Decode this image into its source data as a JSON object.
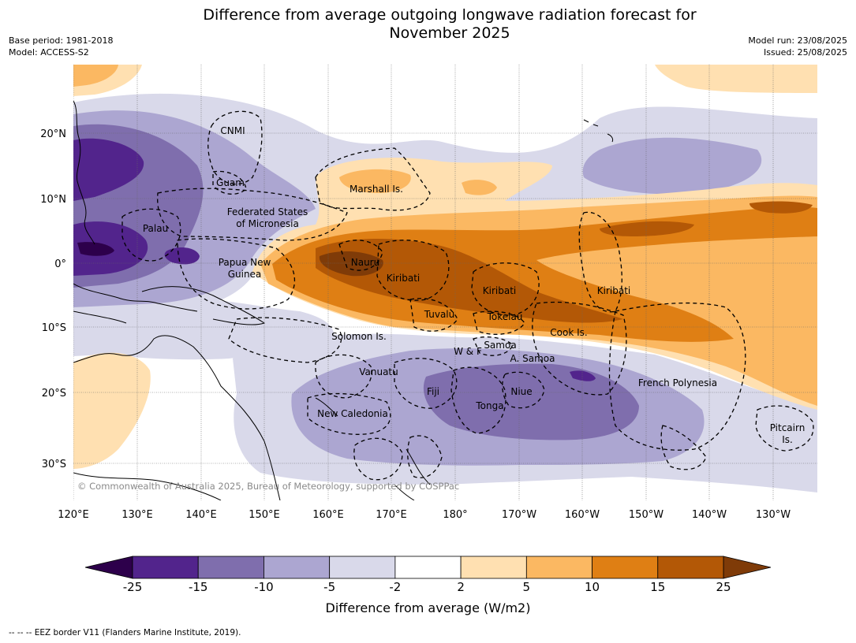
{
  "title": "Difference from average outgoing longwave radiation forecast for November 2025",
  "title_line1": "Difference from average outgoing longwave radiation forecast for",
  "title_line2": "November 2025",
  "meta_left": [
    "Base period: 1981-2018",
    "Model: ACCESS-S2"
  ],
  "meta_right": [
    "Model run: 23/08/2025",
    "Issued: 25/08/2025"
  ],
  "copyright": "© Commonwealth of Australia 2025, Bureau of Meteorology, supported by COSPPac",
  "lon_labels": [
    "120°E",
    "130°E",
    "140°E",
    "150°E",
    "160°E",
    "170°E",
    "180°",
    "170°W",
    "160°W",
    "150°W",
    "140°W",
    "130°W"
  ],
  "lat_labels": [
    "20°N",
    "10°N",
    "0°",
    "10°S",
    "20°S",
    "30°S"
  ],
  "places": [
    {
      "name": "CNMI"
    },
    {
      "name": "Guam"
    },
    {
      "name": "Marshall Is."
    },
    {
      "name": "Federated States"
    },
    {
      "name": "of Micronesia"
    },
    {
      "name": "Palau"
    },
    {
      "name": "Nauru"
    },
    {
      "name": "Papua New"
    },
    {
      "name": "Guinea"
    },
    {
      "name": "Kiribati"
    },
    {
      "name": "Kiribati"
    },
    {
      "name": "Kiribati"
    },
    {
      "name": "Tuvalu"
    },
    {
      "name": "Tokelau"
    },
    {
      "name": "Cook Is."
    },
    {
      "name": "Solomon Is."
    },
    {
      "name": "W & F"
    },
    {
      "name": "Samoa"
    },
    {
      "name": "A. Samoa"
    },
    {
      "name": "Vanuatu"
    },
    {
      "name": "Fiji"
    },
    {
      "name": "Niue"
    },
    {
      "name": "Tonga"
    },
    {
      "name": "French Polynesia"
    },
    {
      "name": "New Caledonia"
    },
    {
      "name": "Pitcairn"
    },
    {
      "name": "Is."
    }
  ],
  "colorbar": {
    "ticks": [
      "-25",
      "-15",
      "-10",
      "-5",
      "-2",
      "2",
      "5",
      "10",
      "15",
      "25"
    ],
    "colors": [
      "#52248c",
      "#7f6ead",
      "#aca6d1",
      "#d9d9ea",
      "#ffffff",
      "#ffe0b1",
      "#fbb862",
      "#df7f14",
      "#b35806"
    ],
    "under_color": "#2d004b",
    "over_color": "#7f3b08",
    "label": "Difference from average (W/m2)"
  },
  "footnote": "--  --  -- EEZ border V11 (Flanders Marine Institute, 2019)."
}
